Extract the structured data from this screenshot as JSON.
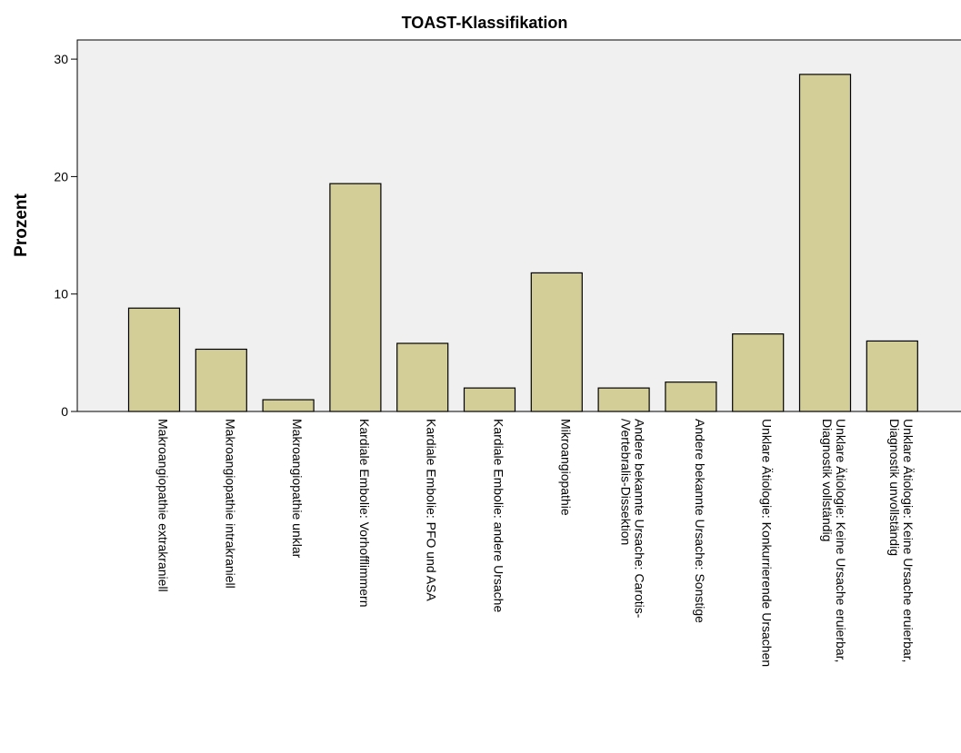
{
  "chart_data": {
    "type": "bar",
    "title": "TOAST-Klassifikation",
    "xlabel": "",
    "ylabel": "Prozent",
    "ylim": [
      0,
      30
    ],
    "yticks": [
      0,
      10,
      20,
      30
    ],
    "grid": false,
    "colors": {
      "bar": "#D3CE98",
      "plot_bg": "#F0F0F0",
      "stroke": "#000000"
    },
    "categories": [
      [
        "Makroangiopathie extrakraniell"
      ],
      [
        "Makroangiopathie intrakraniell"
      ],
      [
        "Makroangiopathie unklar"
      ],
      [
        "Kardiale Embolie: Vorhofflimmern"
      ],
      [
        "Kardiale Embolie: PFO und ASA"
      ],
      [
        "Kardiale Embolie: andere Ursache"
      ],
      [
        "Mikroangiopathie"
      ],
      [
        "Andere bekannte Ursache: Carotis-",
        "/Vertebralis-Dissektion"
      ],
      [
        "Andere bekannte Ursache: Sonstige"
      ],
      [
        "Unklare Ätiologie: Konkurrierende Ursachen"
      ],
      [
        "Unklare Ätiologie: Keine Ursache eruierbar,",
        "Diagnostik vollständig"
      ],
      [
        "Unklare Ätiologie: Keine Ursache eruierbar,",
        "Diagnostik unvollständig"
      ]
    ],
    "values": [
      8.8,
      5.3,
      1.0,
      19.4,
      5.8,
      2.0,
      11.8,
      2.0,
      2.5,
      6.6,
      28.7,
      6.0
    ]
  }
}
